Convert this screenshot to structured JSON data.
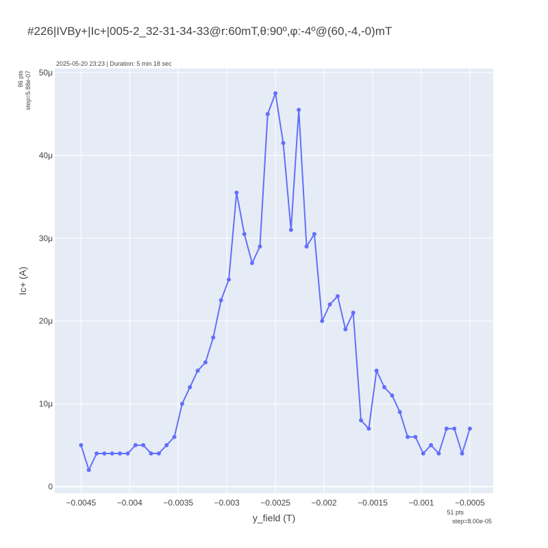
{
  "chart_data": {
    "type": "line",
    "title": "#226|IVBy+|Ic+|005-2_32-31-34-33@r:60mT,θ:90º,φ:-4º@(60,-4,-0)mT",
    "subtitle": "2025-05-20 23:23 | Duration: 5 min 18 sec",
    "xlabel": "y_field (T)",
    "ylabel": "Ic+ (A)",
    "y_note_line1": "86 pts",
    "y_note_line2": "step=5.88e-07",
    "x_note_line1": "51 pts",
    "x_note_line2": "step=8.00e-05",
    "xlim": [
      -0.00477,
      -0.00026
    ],
    "ylim": [
      -8e-07,
      5.05e-05
    ],
    "grid": true,
    "line_color": "#636efa",
    "plot_bg": "#e5ecf6",
    "x_ticks": [
      -0.0045,
      -0.004,
      -0.0035,
      -0.003,
      -0.0025,
      -0.002,
      -0.0015,
      -0.001,
      -0.0005
    ],
    "x_tick_labels": [
      "−0.0045",
      "−0.004",
      "−0.0035",
      "−0.003",
      "−0.0025",
      "−0.002",
      "−0.0015",
      "−0.001",
      "−0.0005"
    ],
    "y_ticks": [
      0,
      1e-05,
      2e-05,
      3e-05,
      4e-05,
      5e-05
    ],
    "y_tick_labels": [
      "0",
      "10μ",
      "20μ",
      "30μ",
      "40μ",
      "50μ"
    ],
    "x": [
      -0.0045,
      -0.00442,
      -0.00434,
      -0.00426,
      -0.00418,
      -0.0041,
      -0.00402,
      -0.00394,
      -0.00386,
      -0.00378,
      -0.0037,
      -0.00362,
      -0.00354,
      -0.00346,
      -0.00338,
      -0.0033,
      -0.00322,
      -0.00314,
      -0.00306,
      -0.00298,
      -0.0029,
      -0.00282,
      -0.00274,
      -0.00266,
      -0.00258,
      -0.0025,
      -0.00242,
      -0.00234,
      -0.00226,
      -0.00218,
      -0.0021,
      -0.00202,
      -0.00194,
      -0.00186,
      -0.00178,
      -0.0017,
      -0.00162,
      -0.00154,
      -0.00146,
      -0.00138,
      -0.0013,
      -0.00122,
      -0.00114,
      -0.00106,
      -0.00098,
      -0.0009,
      -0.00082,
      -0.00074,
      -0.00066,
      -0.00058,
      -0.0005
    ],
    "y": [
      5e-06,
      2e-06,
      4e-06,
      4e-06,
      4e-06,
      4e-06,
      4e-06,
      5e-06,
      5e-06,
      4e-06,
      4e-06,
      5e-06,
      6e-06,
      1e-05,
      1.2e-05,
      1.4e-05,
      1.5e-05,
      1.8e-05,
      2.25e-05,
      2.5e-05,
      3.55e-05,
      3.05e-05,
      2.7e-05,
      2.9e-05,
      4.5e-05,
      4.75e-05,
      4.15e-05,
      3.1e-05,
      4.55e-05,
      2.9e-05,
      3.05e-05,
      2e-05,
      2.2e-05,
      2.3e-05,
      1.9e-05,
      2.1e-05,
      8e-06,
      7e-06,
      1.4e-05,
      1.2e-05,
      1.1e-05,
      9e-06,
      6e-06,
      6e-06,
      4e-06,
      5e-06,
      4e-06,
      7e-06,
      7e-06,
      4e-06,
      7e-06
    ]
  }
}
